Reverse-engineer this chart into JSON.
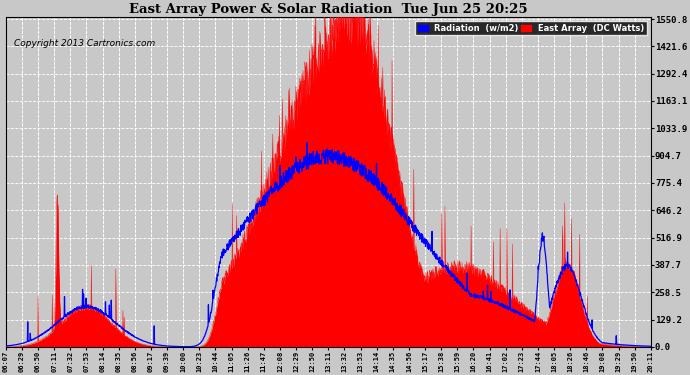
{
  "title": "East Array Power & Solar Radiation  Tue Jun 25 20:25",
  "copyright": "Copyright 2013 Cartronics.com",
  "legend_radiation": "Radiation  (w/m2)",
  "legend_east": "East Array  (DC Watts)",
  "yticks": [
    0.0,
    129.2,
    258.5,
    387.7,
    516.9,
    646.2,
    775.4,
    904.7,
    1033.9,
    1163.1,
    1292.4,
    1421.6,
    1550.8
  ],
  "xtick_labels": [
    "06:07",
    "06:29",
    "06:50",
    "07:11",
    "07:32",
    "07:53",
    "08:14",
    "08:35",
    "08:56",
    "09:17",
    "09:39",
    "10:00",
    "10:23",
    "10:44",
    "11:05",
    "11:26",
    "11:47",
    "12:08",
    "12:29",
    "12:50",
    "13:11",
    "13:32",
    "13:53",
    "14:14",
    "14:35",
    "14:56",
    "15:17",
    "15:38",
    "15:59",
    "16:20",
    "16:41",
    "17:02",
    "17:23",
    "17:44",
    "18:05",
    "18:26",
    "18:46",
    "19:08",
    "19:29",
    "19:50",
    "20:11"
  ],
  "background_color": "#c8c8c8",
  "plot_bg_color": "#c8c8c8",
  "grid_color": "white",
  "radiation_color": "#0000ff",
  "east_array_color": "#ff0000",
  "east_array_fill": "#ff0000",
  "ymax": 1550.8,
  "ymin": 0.0
}
